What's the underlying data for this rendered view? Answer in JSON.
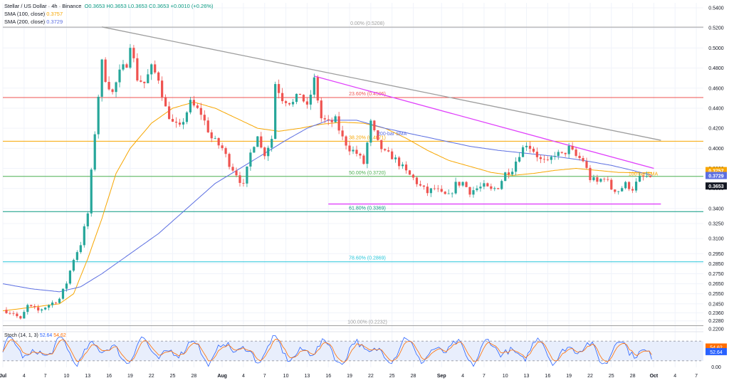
{
  "header": {
    "symbol": "Stellar / US Dollar · 4h · Binance",
    "ohlc": "O0.3653  H0.3653  L0.3653  C0.3653  +0.0010 (+0.26%)",
    "sma100_label": "SMA (100, close)",
    "sma100_value": "0.3757",
    "sma200_label": "SMA (200, close)",
    "sma200_value": "0.3729"
  },
  "colors": {
    "up": "#26a69a",
    "down": "#ef5350",
    "sma100": "#f7a600",
    "sma200": "#5b6ee1",
    "trend_gray": "#9e9e9e",
    "trend_magenta": "#e040fb",
    "support_magenta": "#e040fb",
    "fib_0": "#9e9e9e",
    "fib_236": "#ef5350",
    "fib_382": "#f7a600",
    "fib_50": "#4caf50",
    "fib_618": "#089981",
    "fib_786": "#26c6da",
    "fib_100": "#9e9e9e",
    "stoch_k": "#2962ff",
    "stoch_d": "#ff6d00"
  },
  "chart_data": {
    "type": "candlestick",
    "price_axis": {
      "min": 0.22,
      "max": 0.545,
      "ticks": [
        "0.5400",
        "0.5200",
        "0.5000",
        "0.4800",
        "0.4600",
        "0.4400",
        "0.4200",
        "0.4000",
        "0.3800",
        "0.3600",
        "0.3400",
        "0.3250",
        "0.3100",
        "0.2950",
        "0.2850",
        "0.2750",
        "0.2650",
        "0.2550",
        "0.2450",
        "0.2360",
        "0.2280",
        "0.2200"
      ]
    },
    "time_axis": {
      "start": "Jul 1",
      "end": "Oct 7",
      "ticks": [
        {
          "label": "Jul",
          "day": 0
        },
        {
          "label": "4",
          "day": 3
        },
        {
          "label": "7",
          "day": 6
        },
        {
          "label": "10",
          "day": 9
        },
        {
          "label": "13",
          "day": 12
        },
        {
          "label": "16",
          "day": 15
        },
        {
          "label": "19",
          "day": 18
        },
        {
          "label": "22",
          "day": 21
        },
        {
          "label": "25",
          "day": 24
        },
        {
          "label": "28",
          "day": 27
        },
        {
          "label": "Aug",
          "day": 31
        },
        {
          "label": "4",
          "day": 34
        },
        {
          "label": "7",
          "day": 37
        },
        {
          "label": "10",
          "day": 40
        },
        {
          "label": "13",
          "day": 43
        },
        {
          "label": "16",
          "day": 46
        },
        {
          "label": "19",
          "day": 49
        },
        {
          "label": "22",
          "day": 52
        },
        {
          "label": "25",
          "day": 55
        },
        {
          "label": "28",
          "day": 58
        },
        {
          "label": "Sep",
          "day": 62
        },
        {
          "label": "4",
          "day": 65
        },
        {
          "label": "7",
          "day": 68
        },
        {
          "label": "10",
          "day": 71
        },
        {
          "label": "13",
          "day": 74
        },
        {
          "label": "16",
          "day": 77
        },
        {
          "label": "19",
          "day": 80
        },
        {
          "label": "22",
          "day": 83
        },
        {
          "label": "25",
          "day": 86
        },
        {
          "label": "28",
          "day": 89
        },
        {
          "label": "Oct",
          "day": 92
        },
        {
          "label": "4",
          "day": 95
        },
        {
          "label": "7",
          "day": 98
        }
      ]
    },
    "price_path": [
      [
        0,
        0.239
      ],
      [
        1.5,
        0.236
      ],
      [
        2.5,
        0.229
      ],
      [
        3.5,
        0.243
      ],
      [
        5,
        0.238
      ],
      [
        6.5,
        0.244
      ],
      [
        8,
        0.25
      ],
      [
        9,
        0.266
      ],
      [
        10,
        0.29
      ],
      [
        11,
        0.305
      ],
      [
        12,
        0.335
      ],
      [
        12.8,
        0.4
      ],
      [
        13.3,
        0.44
      ],
      [
        14,
        0.485
      ],
      [
        14.5,
        0.47
      ],
      [
        15.5,
        0.455
      ],
      [
        16.5,
        0.475
      ],
      [
        17.5,
        0.485
      ],
      [
        18,
        0.505
      ],
      [
        19,
        0.47
      ],
      [
        20,
        0.465
      ],
      [
        21,
        0.48
      ],
      [
        22,
        0.47
      ],
      [
        23,
        0.44
      ],
      [
        24,
        0.425
      ],
      [
        25,
        0.42
      ],
      [
        26.5,
        0.445
      ],
      [
        28,
        0.435
      ],
      [
        29.5,
        0.41
      ],
      [
        31,
        0.4
      ],
      [
        32,
        0.385
      ],
      [
        33,
        0.375
      ],
      [
        34,
        0.362
      ],
      [
        35,
        0.395
      ],
      [
        36,
        0.415
      ],
      [
        36.5,
        0.4
      ],
      [
        37,
        0.395
      ],
      [
        38,
        0.41
      ],
      [
        38.5,
        0.465
      ],
      [
        39.5,
        0.45
      ],
      [
        41,
        0.445
      ],
      [
        42,
        0.455
      ],
      [
        43,
        0.44
      ],
      [
        44,
        0.468
      ],
      [
        45,
        0.43
      ],
      [
        46,
        0.425
      ],
      [
        47,
        0.428
      ],
      [
        48,
        0.41
      ],
      [
        49,
        0.4
      ],
      [
        50,
        0.395
      ],
      [
        51,
        0.385
      ],
      [
        52,
        0.425
      ],
      [
        53,
        0.405
      ],
      [
        54,
        0.395
      ],
      [
        55,
        0.392
      ],
      [
        56,
        0.385
      ],
      [
        57,
        0.376
      ],
      [
        58,
        0.37
      ],
      [
        59,
        0.362
      ],
      [
        60,
        0.356
      ],
      [
        61,
        0.36
      ],
      [
        62,
        0.354
      ],
      [
        63,
        0.352
      ],
      [
        64,
        0.364
      ],
      [
        65,
        0.366
      ],
      [
        66,
        0.357
      ],
      [
        67,
        0.36
      ],
      [
        68,
        0.362
      ],
      [
        69,
        0.358
      ],
      [
        70,
        0.362
      ],
      [
        71,
        0.375
      ],
      [
        72,
        0.38
      ],
      [
        73,
        0.395
      ],
      [
        74,
        0.405
      ],
      [
        75,
        0.398
      ],
      [
        76,
        0.388
      ],
      [
        77,
        0.385
      ],
      [
        78,
        0.395
      ],
      [
        79,
        0.393
      ],
      [
        80,
        0.4
      ],
      [
        81,
        0.392
      ],
      [
        82,
        0.388
      ],
      [
        83,
        0.37
      ],
      [
        84,
        0.366
      ],
      [
        85,
        0.372
      ],
      [
        86,
        0.36
      ],
      [
        87,
        0.358
      ],
      [
        88,
        0.364
      ],
      [
        89,
        0.36
      ],
      [
        90,
        0.37
      ],
      [
        91,
        0.372
      ],
      [
        91.8,
        0.3653
      ]
    ],
    "sma100_path": [
      [
        0,
        0.238
      ],
      [
        8,
        0.245
      ],
      [
        10,
        0.255
      ],
      [
        12,
        0.29
      ],
      [
        14,
        0.33
      ],
      [
        16,
        0.375
      ],
      [
        18,
        0.4
      ],
      [
        21,
        0.425
      ],
      [
        24,
        0.44
      ],
      [
        27,
        0.446
      ],
      [
        30,
        0.44
      ],
      [
        33,
        0.43
      ],
      [
        36,
        0.42
      ],
      [
        39,
        0.417
      ],
      [
        42,
        0.42
      ],
      [
        45,
        0.424
      ],
      [
        48,
        0.426
      ],
      [
        51,
        0.425
      ],
      [
        54,
        0.42
      ],
      [
        57,
        0.41
      ],
      [
        60,
        0.398
      ],
      [
        63,
        0.388
      ],
      [
        66,
        0.382
      ],
      [
        69,
        0.376
      ],
      [
        72,
        0.373
      ],
      [
        75,
        0.375
      ],
      [
        78,
        0.378
      ],
      [
        81,
        0.38
      ],
      [
        84,
        0.378
      ],
      [
        87,
        0.376
      ],
      [
        89,
        0.3757
      ],
      [
        91.8,
        0.3757
      ]
    ],
    "sma200_path": [
      [
        0,
        0.265
      ],
      [
        4,
        0.26
      ],
      [
        8,
        0.257
      ],
      [
        11,
        0.262
      ],
      [
        14,
        0.275
      ],
      [
        18,
        0.295
      ],
      [
        22,
        0.315
      ],
      [
        26,
        0.34
      ],
      [
        30,
        0.365
      ],
      [
        34,
        0.382
      ],
      [
        37,
        0.395
      ],
      [
        40,
        0.408
      ],
      [
        43,
        0.42
      ],
      [
        46,
        0.428
      ],
      [
        50,
        0.428
      ],
      [
        54,
        0.42
      ],
      [
        58,
        0.414
      ],
      [
        62,
        0.408
      ],
      [
        66,
        0.402
      ],
      [
        70,
        0.398
      ],
      [
        74,
        0.395
      ],
      [
        78,
        0.392
      ],
      [
        82,
        0.388
      ],
      [
        86,
        0.383
      ],
      [
        89,
        0.378
      ],
      [
        91.8,
        0.3729
      ]
    ],
    "trendlines": [
      {
        "name": "trend-gray",
        "from": [
          14,
          0.521
        ],
        "to": [
          93,
          0.408
        ]
      },
      {
        "name": "trend-magenta",
        "from": [
          44,
          0.472
        ],
        "to": [
          92,
          0.38
        ]
      },
      {
        "name": "support-magenta",
        "from": [
          46,
          0.3445
        ],
        "to": [
          93,
          0.3445
        ]
      }
    ],
    "fib_levels": [
      {
        "label": "0.00% (0.5208)",
        "price": 0.5208,
        "color": "fib_0"
      },
      {
        "label": "23.60% (0.4506)",
        "price": 0.4506,
        "color": "fib_236"
      },
      {
        "label": "38.20% (0.4071)",
        "price": 0.4071,
        "color": "fib_382"
      },
      {
        "label": "50.00% (0.3720)",
        "price": 0.372,
        "color": "fib_50"
      },
      {
        "label": "61.80% (0.3369)",
        "price": 0.3369,
        "color": "fib_618"
      },
      {
        "label": "78.60% (0.2869)",
        "price": 0.2869,
        "color": "fib_786"
      },
      {
        "label": "100.00% (0.2232)",
        "price": 0.2232,
        "color": "fib_100"
      }
    ],
    "annotations": [
      {
        "text": "200-bar SMA",
        "day": 55,
        "price": 0.413
      },
      {
        "text": "100-bar SMA",
        "day": 90.5,
        "price": 0.373
      }
    ],
    "price_tags": [
      {
        "value": "0.3757",
        "price": 0.3757,
        "color": "sma100"
      },
      {
        "value": "0.3729",
        "price": 0.3729,
        "color": "sma200"
      },
      {
        "value": "0.3653",
        "price": 0.3653,
        "color": "#131722"
      }
    ],
    "stoch": {
      "label": "Stoch (14, 1, 3)",
      "k_value": "52.64",
      "d_value": "54.62",
      "min": 0,
      "max": 100,
      "upper_band": 80,
      "lower_band": 20,
      "ticks": [
        "0.00"
      ]
    }
  }
}
